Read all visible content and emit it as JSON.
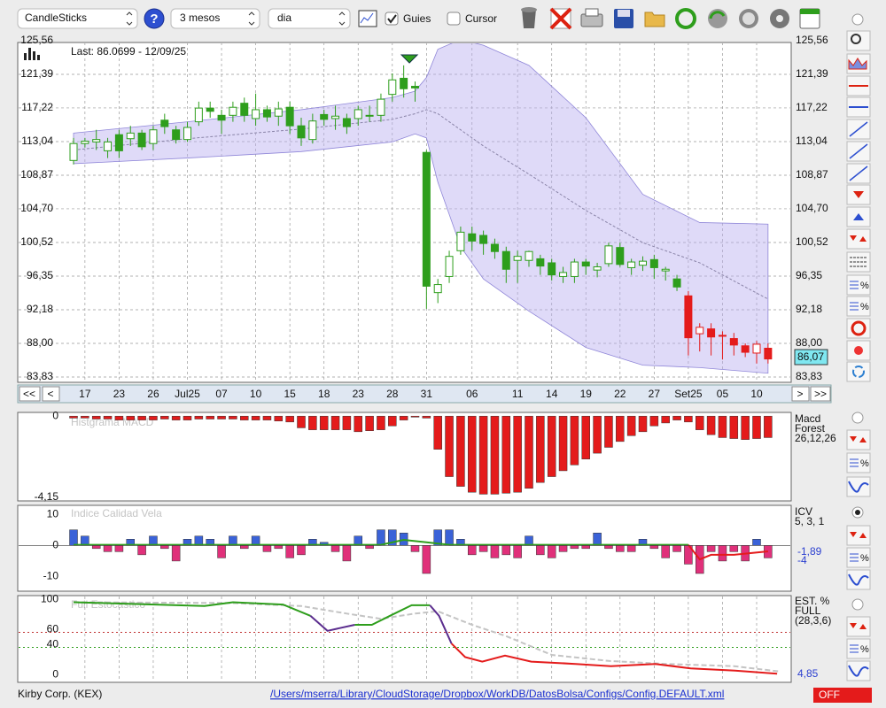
{
  "toolbar": {
    "chart_type": "CandleSticks",
    "help": "?",
    "period": "3 mesos",
    "interval": "dia",
    "guides": {
      "label": "Guies",
      "checked": true
    },
    "cursor": {
      "label": "Cursor",
      "checked": false
    }
  },
  "side_tools": [
    "%",
    "%",
    "%",
    "%",
    "%"
  ],
  "chart_data": [
    {
      "type": "candlestick",
      "annotation": "Last: 86.0699 - 12/09/25",
      "last_label": "86,07",
      "grid": true,
      "ylim": [
        83.83,
        125.56
      ],
      "yticks": [
        {
          "value": 83.83,
          "label": "83,83"
        },
        {
          "value": 88.0,
          "label": "88,00"
        },
        {
          "value": 92.18,
          "label": "92,18"
        },
        {
          "value": 96.35,
          "label": "96,35"
        },
        {
          "value": 100.52,
          "label": "100,52"
        },
        {
          "value": 104.7,
          "label": "104,70"
        },
        {
          "value": 108.87,
          "label": "108,87"
        },
        {
          "value": 113.04,
          "label": "113,04"
        },
        {
          "value": 117.22,
          "label": "117,22"
        },
        {
          "value": 121.39,
          "label": "121,39"
        },
        {
          "value": 125.56,
          "label": "125,56"
        }
      ],
      "date_labels": [
        "17",
        "23",
        "26",
        "Jul25",
        "07",
        "10",
        "15",
        "18",
        "23",
        "28",
        "31",
        "06",
        "11",
        "14",
        "19",
        "22",
        "27",
        "Set25",
        "05",
        "10"
      ],
      "date_index": [
        1,
        4,
        7,
        10,
        13,
        16,
        19,
        22,
        25,
        28,
        31,
        35,
        39,
        42,
        45,
        48,
        51,
        54,
        57,
        60
      ],
      "nav": [
        "<<",
        "<",
        ">",
        ">>"
      ],
      "candles": [
        {
          "o": 110.7,
          "h": 113.5,
          "l": 110.2,
          "c": 112.8,
          "color": "#2e9e1c"
        },
        {
          "o": 112.8,
          "h": 113.5,
          "l": 112.3,
          "c": 113.1,
          "color": "#2e9e1c"
        },
        {
          "o": 113.0,
          "h": 114.5,
          "l": 112.0,
          "c": 113.3,
          "color": "#2e9e1c"
        },
        {
          "o": 111.9,
          "h": 113.5,
          "l": 111.0,
          "c": 113.0,
          "color": "#2e9e1c"
        },
        {
          "o": 113.9,
          "h": 114.5,
          "l": 111.0,
          "c": 111.9,
          "color": "#2e9e1c"
        },
        {
          "o": 113.4,
          "h": 115.0,
          "l": 112.5,
          "c": 114.1,
          "color": "#2e9e1c"
        },
        {
          "o": 114.1,
          "h": 114.5,
          "l": 112.0,
          "c": 112.4,
          "color": "#2e9e1c"
        },
        {
          "o": 112.8,
          "h": 115.0,
          "l": 112.0,
          "c": 114.5,
          "color": "#2e9e1c"
        },
        {
          "o": 115.7,
          "h": 116.5,
          "l": 114.0,
          "c": 114.9,
          "color": "#2e9e1c"
        },
        {
          "o": 114.5,
          "h": 115.0,
          "l": 112.8,
          "c": 113.3,
          "color": "#2e9e1c"
        },
        {
          "o": 113.3,
          "h": 115.5,
          "l": 113.0,
          "c": 114.8,
          "color": "#2e9e1c"
        },
        {
          "o": 115.5,
          "h": 118.0,
          "l": 115.0,
          "c": 117.2,
          "color": "#2e9e1c"
        },
        {
          "o": 117.2,
          "h": 118.0,
          "l": 116.0,
          "c": 116.8,
          "color": "#2e9e1c"
        },
        {
          "o": 116.3,
          "h": 117.0,
          "l": 114.0,
          "c": 115.7,
          "color": "#2e9e1c"
        },
        {
          "o": 116.3,
          "h": 118.0,
          "l": 115.5,
          "c": 117.3,
          "color": "#2e9e1c"
        },
        {
          "o": 117.8,
          "h": 118.5,
          "l": 115.5,
          "c": 116.3,
          "color": "#2e9e1c"
        },
        {
          "o": 115.9,
          "h": 119.0,
          "l": 115.0,
          "c": 117.0,
          "color": "#2e9e1c"
        },
        {
          "o": 117.0,
          "h": 117.5,
          "l": 115.5,
          "c": 116.1,
          "color": "#2e9e1c"
        },
        {
          "o": 116.2,
          "h": 118.0,
          "l": 115.0,
          "c": 117.1,
          "color": "#2e9e1c"
        },
        {
          "o": 117.3,
          "h": 118.0,
          "l": 114.0,
          "c": 115.0,
          "color": "#2e9e1c"
        },
        {
          "o": 115.0,
          "h": 116.0,
          "l": 112.5,
          "c": 113.5,
          "color": "#2e9e1c"
        },
        {
          "o": 113.3,
          "h": 116.5,
          "l": 112.8,
          "c": 115.6,
          "color": "#2e9e1c"
        },
        {
          "o": 116.4,
          "h": 117.0,
          "l": 115.0,
          "c": 115.8,
          "color": "#2e9e1c"
        },
        {
          "o": 115.9,
          "h": 117.5,
          "l": 114.5,
          "c": 116.2,
          "color": "#2e9e1c"
        },
        {
          "o": 115.9,
          "h": 116.5,
          "l": 114.0,
          "c": 114.9,
          "color": "#2e9e1c"
        },
        {
          "o": 115.9,
          "h": 117.5,
          "l": 115.0,
          "c": 117.0,
          "color": "#2e9e1c"
        },
        {
          "o": 116.2,
          "h": 117.5,
          "l": 115.5,
          "c": 116.3,
          "color": "#2e9e1c"
        },
        {
          "o": 116.3,
          "h": 119.0,
          "l": 115.5,
          "c": 118.3,
          "color": "#2e9e1c"
        },
        {
          "o": 118.9,
          "h": 121.5,
          "l": 118.0,
          "c": 120.7,
          "color": "#2e9e1c"
        },
        {
          "o": 120.9,
          "h": 122.5,
          "l": 118.5,
          "c": 119.6,
          "color": "#2e9e1c"
        },
        {
          "o": 119.9,
          "h": 120.5,
          "l": 118.0,
          "c": 119.7,
          "color": "#2e9e1c"
        },
        {
          "o": 111.7,
          "h": 112.0,
          "l": 92.3,
          "c": 95.1,
          "color": "#2e9e1c"
        },
        {
          "o": 94.3,
          "h": 96.0,
          "l": 93.0,
          "c": 95.3,
          "color": "#2e9e1c"
        },
        {
          "o": 96.3,
          "h": 99.5,
          "l": 95.5,
          "c": 98.8,
          "color": "#2e9e1c"
        },
        {
          "o": 99.5,
          "h": 102.5,
          "l": 99.0,
          "c": 101.8,
          "color": "#2e9e1c"
        },
        {
          "o": 101.6,
          "h": 102.5,
          "l": 99.5,
          "c": 100.7,
          "color": "#2e9e1c"
        },
        {
          "o": 101.4,
          "h": 102.0,
          "l": 99.0,
          "c": 100.4,
          "color": "#2e9e1c"
        },
        {
          "o": 100.3,
          "h": 101.0,
          "l": 98.5,
          "c": 99.4,
          "color": "#2e9e1c"
        },
        {
          "o": 99.4,
          "h": 100.0,
          "l": 95.5,
          "c": 97.2,
          "color": "#2e9e1c"
        },
        {
          "o": 98.3,
          "h": 99.5,
          "l": 95.5,
          "c": 98.8,
          "color": "#2e9e1c"
        },
        {
          "o": 98.3,
          "h": 99.5,
          "l": 97.5,
          "c": 99.4,
          "color": "#2e9e1c"
        },
        {
          "o": 98.5,
          "h": 99.0,
          "l": 96.5,
          "c": 97.6,
          "color": "#2e9e1c"
        },
        {
          "o": 98.0,
          "h": 98.5,
          "l": 95.8,
          "c": 96.5,
          "color": "#2e9e1c"
        },
        {
          "o": 96.3,
          "h": 97.5,
          "l": 95.5,
          "c": 96.8,
          "color": "#2e9e1c"
        },
        {
          "o": 96.3,
          "h": 98.5,
          "l": 95.5,
          "c": 98.1,
          "color": "#2e9e1c"
        },
        {
          "o": 98.1,
          "h": 98.5,
          "l": 96.5,
          "c": 97.6,
          "color": "#2e9e1c"
        },
        {
          "o": 97.1,
          "h": 98.0,
          "l": 96.2,
          "c": 97.5,
          "color": "#2e9e1c"
        },
        {
          "o": 97.9,
          "h": 100.5,
          "l": 97.5,
          "c": 100.1,
          "color": "#2e9e1c"
        },
        {
          "o": 99.9,
          "h": 100.5,
          "l": 97.5,
          "c": 97.8,
          "color": "#2e9e1c"
        },
        {
          "o": 97.4,
          "h": 98.5,
          "l": 96.5,
          "c": 98.1,
          "color": "#2e9e1c"
        },
        {
          "o": 97.7,
          "h": 98.8,
          "l": 97.0,
          "c": 98.2,
          "color": "#2e9e1c"
        },
        {
          "o": 98.4,
          "h": 99.0,
          "l": 96.0,
          "c": 97.4,
          "color": "#2e9e1c"
        },
        {
          "o": 97.0,
          "h": 97.5,
          "l": 95.8,
          "c": 97.2,
          "color": "#2e9e1c"
        },
        {
          "o": 96.0,
          "h": 96.5,
          "l": 94.5,
          "c": 95.0,
          "color": "#2e9e1c"
        },
        {
          "o": 93.9,
          "h": 94.5,
          "l": 86.5,
          "c": 88.7,
          "color": "#e41b1b"
        },
        {
          "o": 89.2,
          "h": 90.5,
          "l": 87.0,
          "c": 90.0,
          "color": "#e41b1b"
        },
        {
          "o": 89.8,
          "h": 90.5,
          "l": 86.5,
          "c": 88.8,
          "color": "#e41b1b"
        },
        {
          "o": 88.9,
          "h": 89.5,
          "l": 86.0,
          "c": 89.0,
          "color": "#e41b1b"
        },
        {
          "o": 88.6,
          "h": 89.3,
          "l": 86.5,
          "c": 87.8,
          "color": "#e41b1b"
        },
        {
          "o": 87.7,
          "h": 88.0,
          "l": 86.3,
          "c": 86.9,
          "color": "#e41b1b"
        },
        {
          "o": 86.8,
          "h": 88.3,
          "l": 85.5,
          "c": 87.9,
          "color": "#e41b1b"
        },
        {
          "o": 87.4,
          "h": 88.0,
          "l": 85.5,
          "c": 86.07,
          "color": "#e41b1b"
        }
      ],
      "band": {
        "color": "#b7aef0",
        "mid_color": "#8a84a8",
        "x": [
          0,
          10,
          20,
          28,
          30,
          31,
          32,
          34,
          36,
          40,
          45,
          50,
          55,
          61
        ],
        "upper": [
          114.1,
          115.5,
          117.0,
          118.5,
          119.3,
          121.0,
          124.5,
          125.7,
          125.0,
          122.5,
          116.0,
          106.5,
          103.0,
          102.8
        ],
        "lower": [
          110.3,
          111.0,
          111.8,
          113.0,
          114.0,
          113.5,
          108.0,
          100.0,
          96.0,
          92.0,
          87.5,
          85.3,
          85.0,
          84.3
        ],
        "mid": [
          112.0,
          113.4,
          114.6,
          115.8,
          116.5,
          117.0,
          116.5,
          114.5,
          112.5,
          109.0,
          104.5,
          100.5,
          98.0,
          93.5
        ]
      }
    },
    {
      "type": "bar",
      "title": "Histgrama MACD",
      "legend": [
        "Macd",
        "Forest",
        "26,12,26"
      ],
      "color": "#e41b1b",
      "ylim": [
        -4.3,
        0.1
      ],
      "yticks": [
        0,
        {
          "value": -4.15,
          "label": "-4,15"
        }
      ],
      "values": [
        -0.1,
        -0.1,
        -0.15,
        -0.15,
        -0.2,
        -0.2,
        -0.2,
        -0.2,
        -0.15,
        -0.2,
        -0.2,
        -0.15,
        -0.15,
        -0.15,
        -0.15,
        -0.2,
        -0.2,
        -0.2,
        -0.25,
        -0.3,
        -0.6,
        -0.7,
        -0.7,
        -0.7,
        -0.7,
        -0.8,
        -0.75,
        -0.7,
        -0.5,
        -0.2,
        -0.05,
        -0.1,
        -1.7,
        -3.1,
        -3.6,
        -3.9,
        -4.0,
        -4.0,
        -3.95,
        -3.9,
        -3.7,
        -3.4,
        -3.1,
        -2.8,
        -2.5,
        -2.2,
        -1.9,
        -1.6,
        -1.3,
        -1.0,
        -0.8,
        -0.5,
        -0.35,
        -0.2,
        -0.3,
        -0.7,
        -0.95,
        -1.1,
        -1.15,
        -1.2,
        -1.15,
        -1.1
      ]
    },
    {
      "type": "bar",
      "title": "Indice Calidad Vela",
      "legend": [
        "ICV",
        "5, 3, 1"
      ],
      "pos_color": "#3a62d8",
      "neg_color": "#e0307a",
      "ylim": [
        -14.4,
        12.3
      ],
      "yticks": [
        10,
        0,
        -10
      ],
      "values": [
        5,
        3,
        -1,
        -2,
        -2,
        2,
        -3,
        3,
        -1,
        -5,
        2,
        3,
        2,
        -4,
        3,
        -1,
        3,
        -2,
        -1,
        -4,
        -3,
        2,
        1,
        -2,
        -5,
        3,
        -1,
        5,
        5,
        4,
        -2,
        -9,
        5,
        5,
        2,
        -3,
        -2,
        -4,
        -3,
        -4,
        3,
        -3,
        -4,
        -2,
        -1,
        -1,
        4,
        -1,
        -2,
        -2,
        2,
        -1,
        -4,
        -2,
        -6,
        -9,
        -2,
        -5,
        -2,
        -5,
        2,
        -4
      ],
      "value_label": "-4",
      "lines": [
        {
          "color": "#2e9e1c",
          "x": [
            0,
            27,
            29,
            31,
            33,
            54
          ],
          "values": [
            0.2,
            0.2,
            1.8,
            1.0,
            0.2,
            0.2
          ]
        },
        {
          "color": "#e41b1b",
          "x": [
            54,
            55,
            56,
            58,
            61
          ],
          "values": [
            0.2,
            -4.5,
            -3,
            -3,
            -1.89
          ],
          "value_label": "-1,89",
          "label_color": "#2b3fd0"
        }
      ]
    },
    {
      "type": "line",
      "title": "Full Estocastico",
      "legend": [
        "EST. %",
        "FULL",
        "(28,3,6)"
      ],
      "ylim": [
        -3,
        103
      ],
      "yticks": [
        100,
        60,
        40,
        0
      ],
      "levels": [
        {
          "value": 60,
          "color": "#c03030"
        },
        {
          "value": 40,
          "color": "#2e9e1c"
        }
      ],
      "pieces": [
        {
          "color": "#2e9e1c",
          "x": [
            0,
            11.5,
            14,
            18.4,
            20.8
          ],
          "values": [
            100,
            95,
            100,
            97,
            82
          ]
        },
        {
          "color": "#5b2d8e",
          "x": [
            20.8,
            22.3,
            24.7
          ],
          "values": [
            82,
            62,
            70
          ]
        },
        {
          "color": "#2e9e1c",
          "x": [
            24.7,
            26.2,
            27.8,
            29.7,
            31.3
          ],
          "values": [
            70,
            70,
            82,
            96,
            96
          ]
        },
        {
          "color": "#5b2d8e",
          "x": [
            31.3,
            32.1,
            33.2
          ],
          "values": [
            96,
            82,
            45
          ]
        },
        {
          "color": "#e41b1b",
          "x": [
            33.2,
            34.4,
            35.9,
            37.9,
            40.2,
            44.1,
            47.2,
            51.1,
            54.2,
            58.1,
            61.8
          ],
          "values": [
            45,
            27,
            21,
            29,
            21,
            18,
            15,
            18,
            12,
            9,
            4.85
          ]
        }
      ],
      "signal": {
        "color": "#c4c4c4",
        "x": [
          0,
          14,
          20,
          24,
          27,
          30,
          32,
          35,
          38,
          42,
          47,
          52,
          58,
          62
        ],
        "values": [
          100,
          99,
          95,
          85,
          78,
          85,
          88,
          70,
          55,
          30,
          22,
          18,
          15,
          8
        ]
      },
      "value_label": "4,85",
      "label_color": "#2b3fd0"
    }
  ],
  "status": {
    "company": "Kirby Corp. (KEX)",
    "path": "/Users/mserra/Library/CloudStorage/Dropbox/WorkDB/DatosBolsa/Configs/Config.DEFAULT.xml",
    "mode": "OFF"
  }
}
